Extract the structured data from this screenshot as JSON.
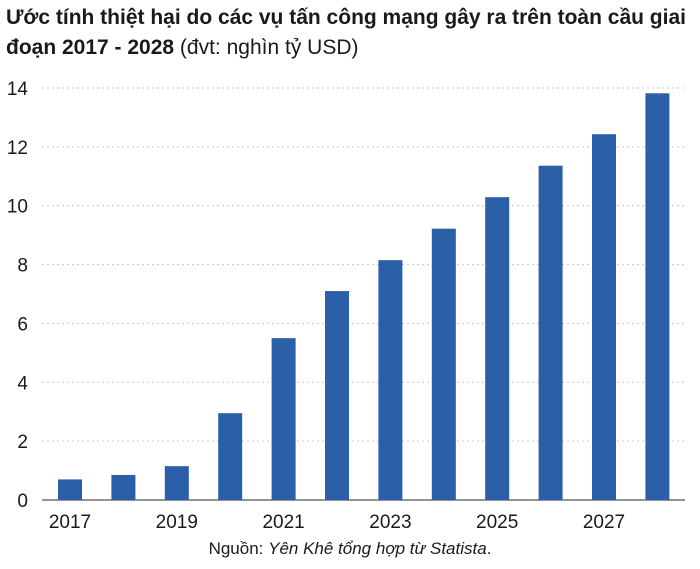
{
  "chart_data": {
    "type": "bar",
    "title_bold": "Ước tính thiệt hại do các vụ tấn công mạng gây ra trên toàn cầu giai đoạn 2017 - 2028",
    "title_unit": " (đvt: nghìn tỷ USD)",
    "xlabel": "",
    "ylabel": "",
    "categories": [
      "2017",
      "2018",
      "2019",
      "2020",
      "2021",
      "2022",
      "2023",
      "2024",
      "2025",
      "2026",
      "2027",
      "2028"
    ],
    "x_tick_labels": [
      "2017",
      "",
      "2019",
      "",
      "2021",
      "",
      "2023",
      "",
      "2025",
      "",
      "2027",
      ""
    ],
    "values": [
      0.7,
      0.85,
      1.15,
      2.95,
      5.5,
      7.1,
      8.15,
      9.22,
      10.29,
      11.36,
      12.43,
      13.82
    ],
    "ylim": [
      0,
      14
    ],
    "y_ticks": [
      0,
      2,
      4,
      6,
      8,
      10,
      12,
      14
    ],
    "grid": true,
    "bar_color": "#2b5fa8"
  },
  "source": {
    "prefix": "Nguồn: ",
    "text": "Yên Khê tổng hợp từ Statista",
    "suffix": "."
  }
}
